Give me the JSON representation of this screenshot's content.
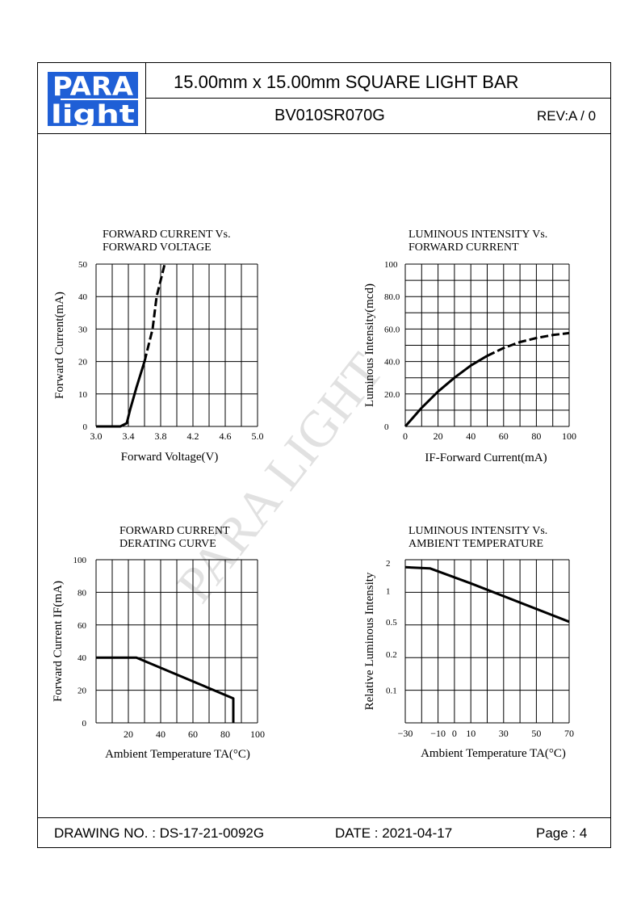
{
  "header": {
    "logo_top": "PARA",
    "logo_bottom": "light",
    "title": "15.00mm x 15.00mm   SQUARE   LIGHT   BAR",
    "part_number": "BV010SR070G",
    "revision": "REV:A / 0"
  },
  "watermark": "PARA LIGHT",
  "footer": {
    "drawing_no": "DRAWING NO. : DS-17-21-0092G",
    "date": "DATE : 2021-04-17",
    "page": "Page : 4"
  },
  "colors": {
    "logo_blue": "#1f5fd6",
    "ink": "#000000",
    "watermark": "#c8c8c8"
  },
  "chart_data": [
    {
      "type": "line",
      "title": "FORWARD  CURRENT  Vs. FORWARD  VOLTAGE",
      "title_lines": [
        "FORWARD  CURRENT  Vs.",
        "FORWARD  VOLTAGE"
      ],
      "xlabel": "Forward Voltage(V)",
      "ylabel": "Forward Current(mA)",
      "x_ticks": [
        "3.0",
        "3.4",
        "3.8",
        "4.2",
        "4.6",
        "5.0"
      ],
      "y_ticks": [
        "0",
        "10",
        "20",
        "30",
        "40",
        "50"
      ],
      "xlim": [
        3.0,
        5.0
      ],
      "ylim": [
        0,
        50
      ],
      "grid": true,
      "series": [
        {
          "x": [
            3.0,
            3.3,
            3.38,
            3.42,
            3.5,
            3.6
          ],
          "y": [
            0,
            0,
            1,
            5,
            12,
            20
          ],
          "style": "solid"
        },
        {
          "x": [
            3.6,
            3.7,
            3.75,
            3.85
          ],
          "y": [
            20,
            30,
            40,
            50
          ],
          "style": "dashed"
        }
      ]
    },
    {
      "type": "line",
      "title": "LUMINOUS  INTENSITY  Vs. FORWARD  CURRENT",
      "title_lines": [
        "LUMINOUS  INTENSITY  Vs.",
        "FORWARD  CURRENT"
      ],
      "xlabel": "IF-Forward Current(mA)",
      "ylabel": "Luminous Intensity(mcd)",
      "x_ticks": [
        "0",
        "20",
        "40",
        "60",
        "80",
        "100"
      ],
      "y_ticks": [
        "0",
        "20.0",
        "40.0",
        "60.0",
        "80.0",
        "100"
      ],
      "xlim": [
        0,
        100
      ],
      "ylim": [
        0,
        100
      ],
      "grid": true,
      "series": [
        {
          "x": [
            0,
            10,
            20,
            30,
            40,
            50
          ],
          "y": [
            0,
            11.5,
            21.5,
            30,
            37.5,
            43.5
          ],
          "style": "solid"
        },
        {
          "x": [
            50,
            60,
            70,
            80,
            90,
            100
          ],
          "y": [
            43.5,
            48.3,
            52,
            54.5,
            56.3,
            57.5
          ],
          "style": "dashed"
        }
      ]
    },
    {
      "type": "line",
      "title": "FORWARD  CURRENT  DERATING  CURVE",
      "title_lines": [
        "FORWARD  CURRENT",
        "DERATING  CURVE"
      ],
      "xlabel": "Ambient Temperature TA(°C)",
      "ylabel": "Forward Current IF(mA)",
      "x_ticks": [
        "20",
        "40",
        "60",
        "80",
        "100"
      ],
      "y_ticks": [
        "0",
        "20",
        "40",
        "60",
        "80",
        "100"
      ],
      "xlim": [
        0,
        100
      ],
      "ylim": [
        0,
        100
      ],
      "grid": true,
      "series": [
        {
          "x": [
            0,
            25,
            85,
            85
          ],
          "y": [
            40,
            40,
            15,
            0
          ],
          "style": "solid"
        }
      ]
    },
    {
      "type": "line",
      "title": "LUMINOUS  INTENSITY  Vs. AMBIENT  TEMPERATURE",
      "title_lines": [
        "LUMINOUS  INTENSITY  Vs.",
        "AMBIENT  TEMPERATURE"
      ],
      "xlabel": "Ambient Temperature TA(°C)",
      "ylabel": "Relative Luminous Intensity",
      "x_ticks": [
        "−30",
        "−10",
        "0",
        "10",
        "30",
        "50",
        "70"
      ],
      "x_tick_values": [
        -30,
        -10,
        0,
        10,
        30,
        50,
        70
      ],
      "y_ticks": [
        "0.1",
        "0.2",
        "0.5",
        "1",
        "2"
      ],
      "y_tick_values": [
        0.1,
        0.2,
        0.5,
        1,
        2
      ],
      "xlim": [
        -30,
        70
      ],
      "y_scale": "log",
      "grid": true,
      "series": [
        {
          "x": [
            -30,
            -15,
            10,
            70
          ],
          "y": [
            1.8,
            1.75,
            1.2,
            0.5
          ],
          "style": "solid"
        }
      ]
    }
  ]
}
